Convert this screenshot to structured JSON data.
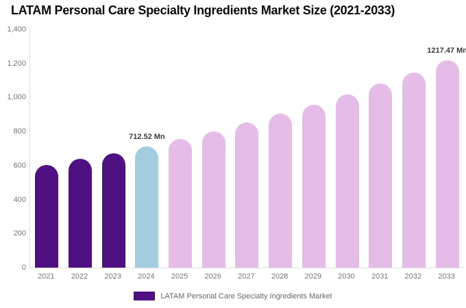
{
  "title": "LATAM Personal Care Specialty Ingredients Market Size (2021-2033)",
  "chart_data": {
    "type": "bar",
    "title": "LATAM Personal Care Specialty Ingredients Market Size (2021-2033)",
    "categories": [
      "2021",
      "2022",
      "2023",
      "2024",
      "2025",
      "2026",
      "2027",
      "2028",
      "2029",
      "2030",
      "2031",
      "2032",
      "2033"
    ],
    "series": [
      {
        "name": "LATAM Personal Care Specialty Ingredients Market",
        "values": [
          604,
          638,
          670,
          712.52,
          756.2,
          802.6,
          851.8,
          904.0,
          959.5,
          1018.3,
          1080.8,
          1147.1,
          1217.47
        ]
      }
    ],
    "xlabel": "",
    "ylabel": "",
    "ylim": [
      0,
      1400
    ],
    "yticks": [
      "0",
      "200",
      "400",
      "600",
      "800",
      "1,000",
      "1,200",
      "1,400"
    ],
    "grid": false,
    "legend_position": "bottom",
    "units": "Mn",
    "bar_colors": [
      "#4F1182",
      "#4F1182",
      "#4F1182",
      "#A3CCE1",
      "#E5BCE8",
      "#E5BCE8",
      "#E5BCE8",
      "#E5BCE8",
      "#E5BCE8",
      "#E5BCE8",
      "#E5BCE8",
      "#E5BCE8",
      "#E5BCE8"
    ],
    "data_labels": [
      {
        "index": 3,
        "label": "712.52 Mn"
      },
      {
        "index": 12,
        "label": "1217.47 Mn"
      }
    ],
    "colors": {
      "historical_bar": "#4F1182",
      "current_year_bar": "#A3CCE1",
      "forecast_bar": "#E5BCE8",
      "axis_line": "#DEDEDE",
      "tick_text": "#757575",
      "legend_text": "#666666",
      "data_label_text": "#3A3A3A"
    }
  }
}
